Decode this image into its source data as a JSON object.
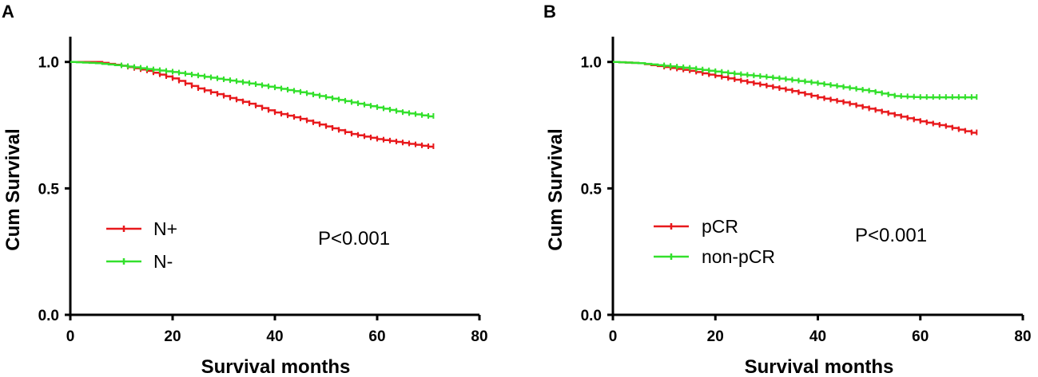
{
  "chart_data": [
    {
      "type": "line",
      "panel_label": "A",
      "xlabel": "Survival months",
      "ylabel": "Cum Survival",
      "xlim": [
        0,
        80
      ],
      "ylim": [
        0,
        1.1
      ],
      "xticks": [
        "0",
        "20",
        "40",
        "60",
        "80"
      ],
      "yticks": [
        "0.0",
        "0.5",
        "1.0"
      ],
      "annotation": "P<0.001",
      "legend_position": "lower-left",
      "series": [
        {
          "name": "N+",
          "color": "#e8191c",
          "x": [
            0,
            5,
            10,
            15,
            20,
            25,
            30,
            35,
            40,
            45,
            50,
            55,
            60,
            65,
            70,
            71
          ],
          "y": [
            1.0,
            1.0,
            0.985,
            0.965,
            0.935,
            0.895,
            0.865,
            0.835,
            0.8,
            0.775,
            0.745,
            0.715,
            0.695,
            0.68,
            0.665,
            0.665
          ]
        },
        {
          "name": "N-",
          "color": "#33e02c",
          "x": [
            0,
            5,
            10,
            15,
            20,
            25,
            30,
            35,
            40,
            45,
            50,
            55,
            60,
            65,
            70,
            71
          ],
          "y": [
            1.0,
            0.995,
            0.985,
            0.972,
            0.96,
            0.945,
            0.93,
            0.915,
            0.898,
            0.88,
            0.86,
            0.84,
            0.82,
            0.8,
            0.785,
            0.785
          ]
        }
      ]
    },
    {
      "type": "line",
      "panel_label": "B",
      "xlabel": "Survival months",
      "ylabel": "Cum Survival",
      "xlim": [
        0,
        80
      ],
      "ylim": [
        0,
        1.1
      ],
      "xticks": [
        "0",
        "20",
        "40",
        "60",
        "80"
      ],
      "yticks": [
        "0.0",
        "0.5",
        "1.0"
      ],
      "annotation": "P<0.001",
      "legend_position": "lower-left",
      "series": [
        {
          "name": "pCR",
          "color": "#e8191c",
          "x": [
            0,
            5,
            10,
            15,
            20,
            25,
            30,
            35,
            40,
            45,
            50,
            55,
            60,
            65,
            70,
            71
          ],
          "y": [
            1.0,
            0.995,
            0.98,
            0.965,
            0.945,
            0.925,
            0.905,
            0.885,
            0.86,
            0.84,
            0.815,
            0.79,
            0.765,
            0.745,
            0.72,
            0.72
          ]
        },
        {
          "name": "non-pCR",
          "color": "#33e02c",
          "x": [
            0,
            5,
            10,
            15,
            20,
            25,
            30,
            35,
            40,
            45,
            50,
            55,
            60,
            65,
            70,
            71
          ],
          "y": [
            1.0,
            0.995,
            0.985,
            0.975,
            0.962,
            0.95,
            0.94,
            0.928,
            0.915,
            0.9,
            0.885,
            0.865,
            0.86,
            0.86,
            0.86,
            0.86
          ]
        }
      ]
    }
  ]
}
